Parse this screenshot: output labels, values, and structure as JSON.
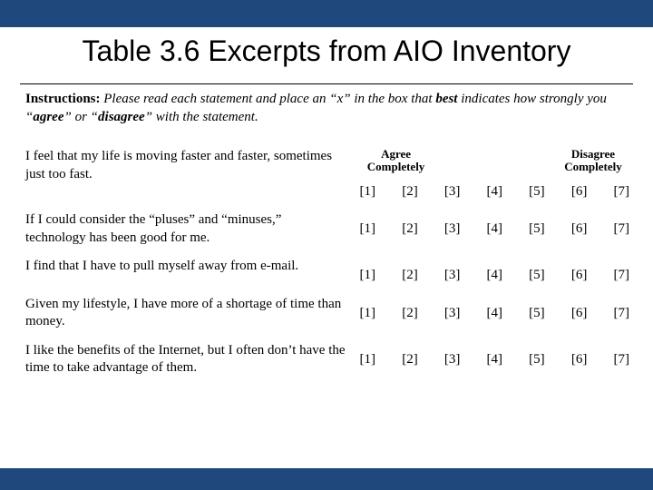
{
  "colors": {
    "accent": "#1f497d",
    "background": "#ffffff",
    "text": "#000000"
  },
  "title": "Table 3.6  Excerpts from AIO Inventory",
  "instructions": {
    "lead": "Instructions:",
    "body_before_best": " Please read each statement and place an “x” in the box that ",
    "best": "best",
    "body_after_best": " indicates how strongly you “",
    "agree": "agree",
    "mid": "” or “",
    "disagree": "disagree",
    "tail": "” with the statement."
  },
  "scale": {
    "left_header_line1": "Agree",
    "left_header_line2": "Completely",
    "right_header_line1": "Disagree",
    "right_header_line2": "Completely",
    "boxes": [
      "[1]",
      "[2]",
      "[3]",
      "[4]",
      "[5]",
      "[6]",
      "[7]"
    ]
  },
  "statements": [
    "I feel that my life is moving faster and faster, sometimes just too fast.",
    "If I could consider the “pluses” and “minuses,” technology has been good for me.",
    "I find that I have to pull myself away from e-mail.",
    "Given my lifestyle, I have more of a shortage of time than money.",
    "I like the benefits of the Internet, but I often don’t have the time to take advantage of them."
  ]
}
